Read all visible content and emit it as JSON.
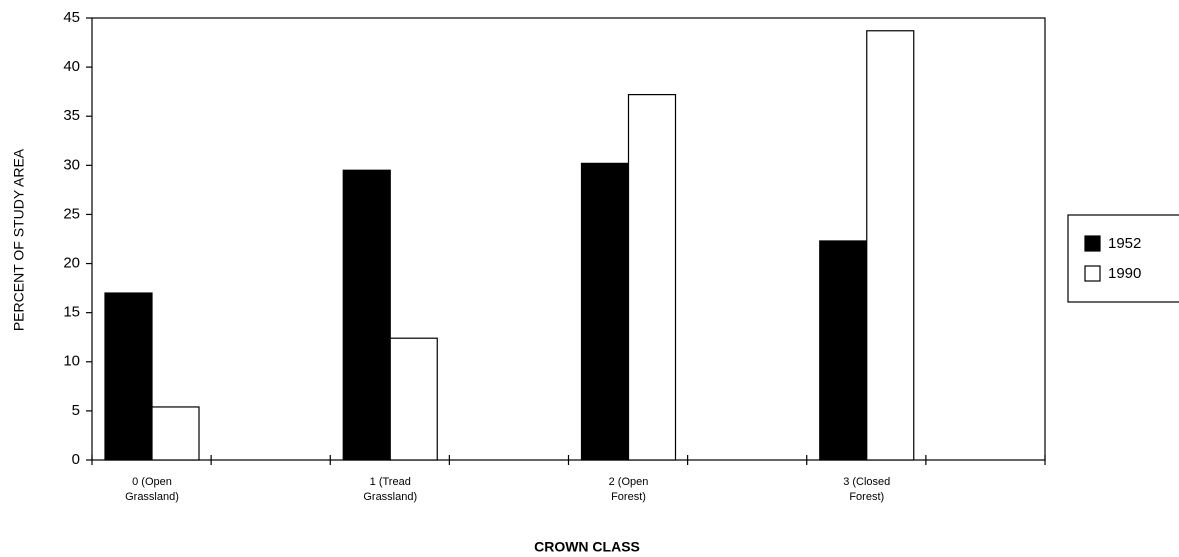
{
  "chart_data": {
    "type": "bar",
    "x_label": "CROWN CLASS",
    "y_label": "PERCENT OF STUDY AREA",
    "categories": [
      "0 (Open\nGrassland)",
      "1 (Tread\nGrassland)",
      "2 (Open\nForest)",
      "3 (Closed\nForest)"
    ],
    "series": [
      {
        "name": "1952",
        "color": "#000000",
        "values": [
          17,
          29.5,
          30.2,
          22.3
        ]
      },
      {
        "name": "1990",
        "color": "#ffffff",
        "values": [
          5.4,
          12.4,
          37.2,
          43.7
        ]
      }
    ],
    "ylim": [
      0,
      45
    ],
    "yticks": [
      0,
      5,
      10,
      15,
      20,
      25,
      30,
      35,
      40,
      45
    ],
    "grid": false,
    "legend": "right"
  }
}
